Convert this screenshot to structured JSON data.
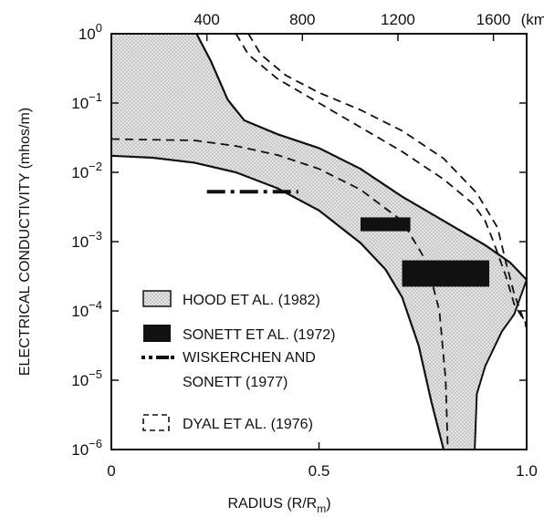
{
  "chart_data": {
    "type": "line",
    "title": "",
    "xlabel": "RADIUS (R/R",
    "xlabel_subscript": "m",
    "xlabel_close": ")",
    "ylabel": "ELECTRICAL CONDUCTIVITY (mhos/m)",
    "xlim": [
      0,
      1.0
    ],
    "ylim_log10": [
      -6,
      0
    ],
    "y_scale": "log",
    "x_ticks": [
      {
        "value": 0,
        "label": "0"
      },
      {
        "value": 0.5,
        "label": "0.5"
      },
      {
        "value": 1.0,
        "label": "1.0"
      }
    ],
    "y_ticks": [
      {
        "exp": 0,
        "base": "10",
        "sup": "0"
      },
      {
        "exp": -1,
        "base": "10",
        "sup": "−1"
      },
      {
        "exp": -2,
        "base": "10",
        "sup": "−2"
      },
      {
        "exp": -3,
        "base": "10",
        "sup": "−3"
      },
      {
        "exp": -4,
        "base": "10",
        "sup": "−4"
      },
      {
        "exp": -5,
        "base": "10",
        "sup": "−5"
      },
      {
        "exp": -6,
        "base": "10",
        "sup": "−6"
      }
    ],
    "top_axis": {
      "ticks": [
        {
          "value": 0.23,
          "label": "400"
        },
        {
          "value": 0.46,
          "label": "800"
        },
        {
          "value": 0.69,
          "label": "1200"
        },
        {
          "value": 0.92,
          "label": "1600"
        }
      ],
      "unit": "(km)"
    },
    "grid": false,
    "series": [
      {
        "name": "HOOD ET AL. (1982)",
        "kind": "shaded-band",
        "upper": [
          [
            0.205,
            0.0
          ],
          [
            0.24,
            -0.4
          ],
          [
            0.28,
            -0.95
          ],
          [
            0.32,
            -1.25
          ],
          [
            0.4,
            -1.45
          ],
          [
            0.5,
            -1.65
          ],
          [
            0.6,
            -1.95
          ],
          [
            0.7,
            -2.35
          ],
          [
            0.8,
            -2.7
          ],
          [
            0.9,
            -3.05
          ],
          [
            0.96,
            -3.3
          ],
          [
            1.0,
            -3.55
          ]
        ],
        "lower": [
          [
            0.0,
            -1.76
          ],
          [
            0.1,
            -1.79
          ],
          [
            0.2,
            -1.86
          ],
          [
            0.3,
            -2.0
          ],
          [
            0.4,
            -2.23
          ],
          [
            0.5,
            -2.55
          ],
          [
            0.6,
            -3.02
          ],
          [
            0.66,
            -3.4
          ],
          [
            0.7,
            -3.8
          ],
          [
            0.74,
            -4.5
          ],
          [
            0.77,
            -5.3
          ],
          [
            0.8,
            -6.0
          ]
        ],
        "right_edge": [
          [
            0.8,
            -6.0
          ],
          [
            0.875,
            -6.0
          ],
          [
            0.88,
            -5.2
          ],
          [
            0.9,
            -4.8
          ],
          [
            0.94,
            -4.3
          ],
          [
            0.97,
            -4.05
          ],
          [
            1.0,
            -3.55
          ]
        ]
      },
      {
        "name": "SONETT ET AL. (1972)",
        "kind": "solid-blocks",
        "blocks": [
          {
            "x": [
              0.6,
              0.72
            ],
            "logy": [
              -2.65,
              -2.85
            ]
          },
          {
            "x": [
              0.7,
              0.91
            ],
            "logy": [
              -3.27,
              -3.65
            ]
          }
        ]
      },
      {
        "name": "WISKERCHEN AND SONETT (1977)",
        "name_line2": "SONETT (1977)",
        "kind": "dash-dot",
        "points": [
          [
            0.23,
            -2.28
          ],
          [
            0.45,
            -2.28
          ]
        ]
      },
      {
        "name": "DYAL ET AL. (1976)",
        "kind": "dashed-curves",
        "curves": [
          [
            [
              0.0,
              -1.52
            ],
            [
              0.2,
              -1.54
            ],
            [
              0.3,
              -1.62
            ],
            [
              0.4,
              -1.75
            ],
            [
              0.5,
              -1.95
            ],
            [
              0.6,
              -2.25
            ],
            [
              0.7,
              -2.7
            ],
            [
              0.76,
              -3.3
            ],
            [
              0.79,
              -4.0
            ],
            [
              0.805,
              -5.0
            ],
            [
              0.81,
              -6.0
            ]
          ],
          [
            [
              0.33,
              0.0
            ],
            [
              0.36,
              -0.3
            ],
            [
              0.42,
              -0.6
            ],
            [
              0.5,
              -0.85
            ],
            [
              0.6,
              -1.1
            ],
            [
              0.7,
              -1.4
            ],
            [
              0.8,
              -1.8
            ],
            [
              0.88,
              -2.3
            ],
            [
              0.93,
              -2.8
            ],
            [
              0.95,
              -3.3
            ],
            [
              0.97,
              -3.75
            ],
            [
              1.0,
              -4.25
            ]
          ],
          [
            [
              0.3,
              0.0
            ],
            [
              0.33,
              -0.3
            ],
            [
              0.4,
              -0.65
            ],
            [
              0.5,
              -1.0
            ],
            [
              0.6,
              -1.35
            ],
            [
              0.7,
              -1.7
            ],
            [
              0.8,
              -2.1
            ],
            [
              0.87,
              -2.45
            ],
            [
              0.9,
              -2.7
            ],
            [
              0.92,
              -3.0
            ],
            [
              0.95,
              -3.5
            ],
            [
              0.97,
              -3.9
            ],
            [
              1.0,
              -4.2
            ]
          ]
        ]
      }
    ],
    "legend": {
      "placement": "lower-left",
      "entries": [
        {
          "label": "HOOD ET AL. (1982)",
          "symbol": "open-box-shaded"
        },
        {
          "label": "SONETT ET AL. (1972)",
          "symbol": "solid-box"
        },
        {
          "label": "WISKERCHEN AND",
          "label2": "SONETT (1977)",
          "symbol": "dash-dot"
        },
        {
          "label": "DYAL ET AL. (1976)",
          "symbol": "dashed-box"
        }
      ]
    },
    "colors": {
      "ink": "#111111",
      "band_fill": "#d9d9d9"
    }
  }
}
